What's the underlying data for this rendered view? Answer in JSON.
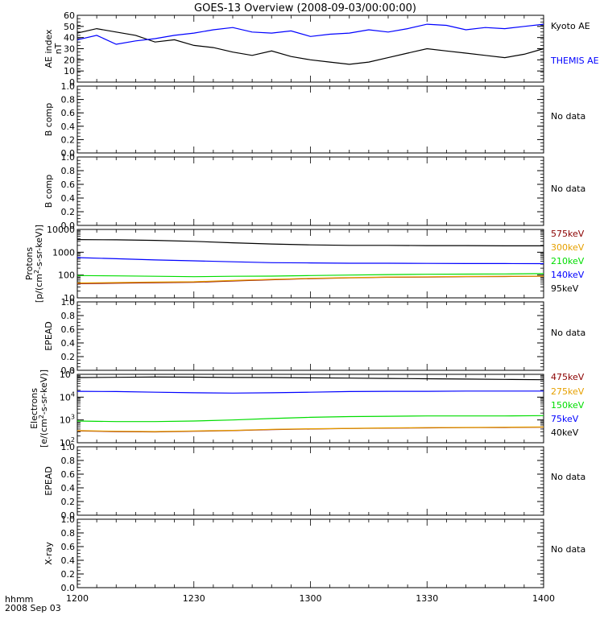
{
  "title": "GOES-13 Overview (2008-09-03/00:00:00)",
  "x_axis": {
    "ticks": [
      "1200",
      "1230",
      "1300",
      "1330",
      "1400"
    ],
    "label_line1": "hhmm",
    "label_line2": "2008 Sep 03"
  },
  "chart_data": [
    {
      "type": "line",
      "ylabel": "AE index",
      "yunit": "nT",
      "ylim": [
        0,
        60
      ],
      "yticks": [
        "0",
        "10",
        "20",
        "30",
        "40",
        "50",
        "60"
      ],
      "x": [
        "12:00",
        "12:05",
        "12:10",
        "12:15",
        "12:20",
        "12:25",
        "12:30",
        "12:35",
        "12:40",
        "12:45",
        "12:50",
        "12:55",
        "13:00",
        "13:05",
        "13:10",
        "13:15",
        "13:20",
        "13:25",
        "13:30",
        "13:35",
        "13:40",
        "13:45",
        "13:50",
        "13:55",
        "14:00"
      ],
      "series": [
        {
          "name": "Kyoto AE",
          "color": "#000000",
          "values": [
            44,
            48,
            45,
            42,
            36,
            38,
            33,
            31,
            27,
            24,
            28,
            23,
            20,
            18,
            16,
            18,
            22,
            26,
            30,
            28,
            26,
            24,
            22,
            25,
            30
          ]
        },
        {
          "name": "THEMIS AE",
          "color": "#0000ff",
          "values": [
            38,
            42,
            34,
            37,
            39,
            42,
            44,
            47,
            49,
            45,
            44,
            46,
            41,
            43,
            44,
            47,
            45,
            48,
            52,
            51,
            47,
            49,
            48,
            50,
            52
          ]
        }
      ]
    },
    {
      "type": "line",
      "ylabel": "B comp",
      "ylim": [
        0,
        1
      ],
      "yticks": [
        "0.0",
        "0.2",
        "0.4",
        "0.6",
        "0.8",
        "1.0"
      ],
      "status": "No data"
    },
    {
      "type": "line",
      "ylabel": "B comp",
      "ylim": [
        0,
        1
      ],
      "yticks": [
        "0.0",
        "0.2",
        "0.4",
        "0.6",
        "0.8",
        "1.0"
      ],
      "status": "No data"
    },
    {
      "type": "line",
      "scale": "log",
      "ylabel": "Protons",
      "yunit": "[p/(cm2-s-sr-keV)]",
      "ylim": [
        10,
        10000
      ],
      "yticks": [
        "10",
        "100",
        "1000",
        "10000"
      ],
      "x": [
        "12:00",
        "12:10",
        "12:20",
        "12:30",
        "12:40",
        "12:50",
        "13:00",
        "13:10",
        "13:20",
        "13:30",
        "13:40",
        "13:50",
        "14:00"
      ],
      "series": [
        {
          "name": "575keV",
          "color": "#8b0000",
          "values": [
            42,
            44,
            46,
            48,
            55,
            62,
            70,
            75,
            80,
            82,
            85,
            86,
            88
          ]
        },
        {
          "name": "300keV",
          "color": "#e6a000",
          "values": [
            45,
            47,
            49,
            51,
            58,
            65,
            72,
            77,
            82,
            84,
            87,
            88,
            90
          ]
        },
        {
          "name": "210keV",
          "color": "#00dd00",
          "values": [
            95,
            92,
            88,
            85,
            88,
            90,
            95,
            100,
            105,
            108,
            110,
            112,
            115
          ]
        },
        {
          "name": "140keV",
          "color": "#0000ff",
          "values": [
            580,
            520,
            460,
            420,
            380,
            350,
            340,
            330,
            330,
            325,
            320,
            320,
            315
          ]
        },
        {
          "name": "95keV",
          "color": "#000000",
          "values": [
            3600,
            3500,
            3300,
            3000,
            2600,
            2300,
            2100,
            2000,
            2000,
            1950,
            1950,
            1900,
            1900
          ]
        }
      ]
    },
    {
      "type": "line",
      "ylabel": "EPEAD",
      "ylim": [
        0,
        1
      ],
      "yticks": [
        "0.0",
        "0.2",
        "0.4",
        "0.6",
        "0.8",
        "1.0"
      ],
      "status": "No data"
    },
    {
      "type": "line",
      "scale": "log",
      "ylabel": "Electrons",
      "yunit": "[e/(cm2-s-sr-keV)]",
      "ylim": [
        100,
        100000
      ],
      "yticks": [
        "10^2",
        "10^3",
        "10^4",
        "10^5"
      ],
      "x": [
        "12:00",
        "12:10",
        "12:20",
        "12:30",
        "12:40",
        "12:50",
        "13:00",
        "13:10",
        "13:20",
        "13:30",
        "13:40",
        "13:50",
        "14:00"
      ],
      "series": [
        {
          "name": "475keV",
          "color": "#8b0000",
          "values": [
            330,
            310,
            300,
            320,
            340,
            380,
            400,
            420,
            440,
            450,
            460,
            470,
            480
          ]
        },
        {
          "name": "275keV",
          "color": "#e6a000",
          "values": [
            340,
            320,
            310,
            330,
            350,
            390,
            410,
            430,
            450,
            460,
            470,
            480,
            490
          ]
        },
        {
          "name": "150keV",
          "color": "#00dd00",
          "values": [
            900,
            850,
            850,
            900,
            1000,
            1150,
            1300,
            1400,
            1450,
            1500,
            1500,
            1500,
            1550
          ]
        },
        {
          "name": "75keV",
          "color": "#0000ff",
          "values": [
            18000,
            17500,
            16500,
            15500,
            15000,
            15500,
            16500,
            17500,
            18000,
            18000,
            18500,
            18500,
            18500
          ]
        },
        {
          "name": "40keV",
          "color": "#000000",
          "values": [
            72000,
            74000,
            76000,
            75000,
            73000,
            72000,
            70000,
            68000,
            66000,
            64000,
            62000,
            60000,
            58000
          ]
        }
      ]
    },
    {
      "type": "line",
      "ylabel": "EPEAD",
      "ylim": [
        0,
        1
      ],
      "yticks": [
        "0.0",
        "0.2",
        "0.4",
        "0.6",
        "0.8",
        "1.0"
      ],
      "status": "No data"
    },
    {
      "type": "line",
      "ylabel": "X-ray",
      "ylim": [
        0,
        1
      ],
      "yticks": [
        "0.0",
        "0.2",
        "0.4",
        "0.6",
        "0.8",
        "1.0"
      ],
      "status": "No data"
    }
  ]
}
